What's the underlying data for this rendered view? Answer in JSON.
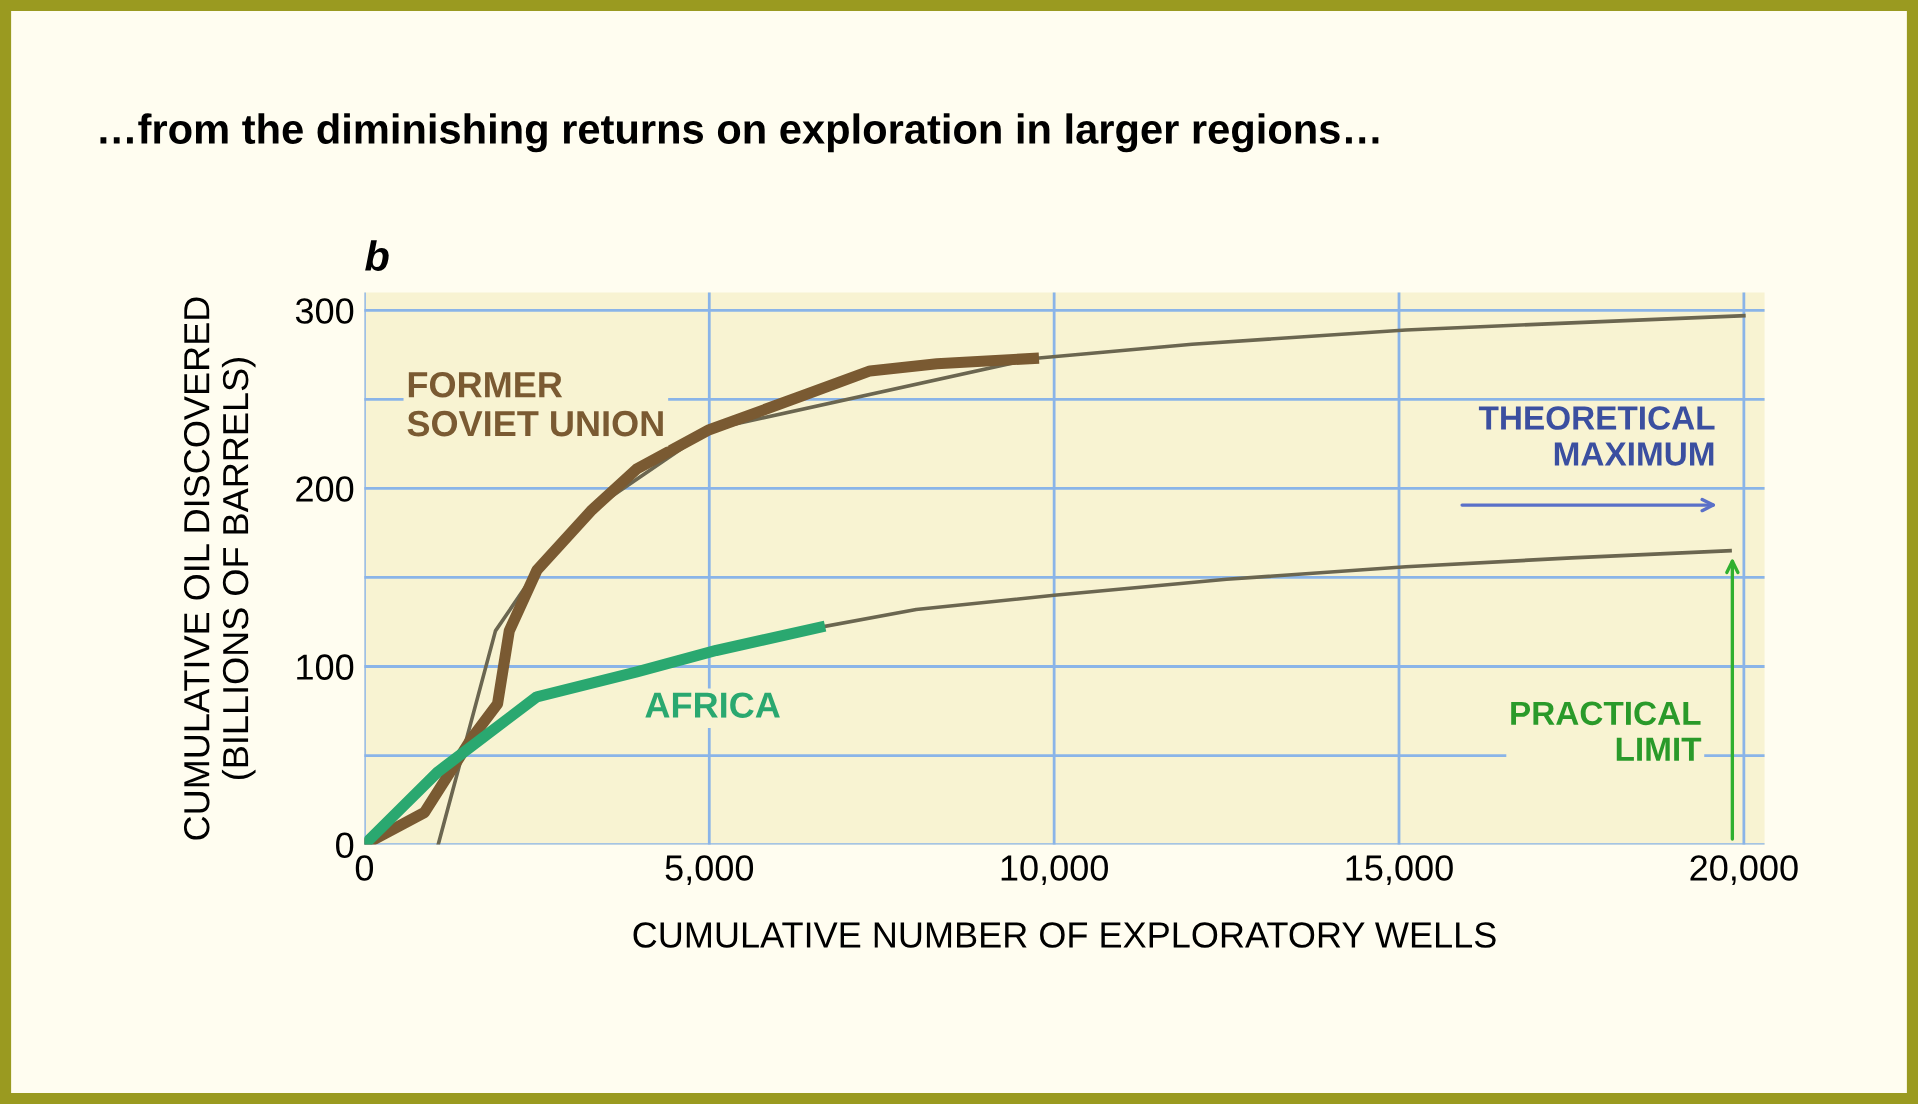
{
  "chart_data": {
    "type": "line",
    "title": "…from the diminishing returns on exploration in larger regions…",
    "xlabel": "CUMULATIVE NUMBER OF EXPLORATORY WELLS",
    "ylabel": "CUMULATIVE OIL DISCOVERED\n(BILLIONS OF BARRELS)",
    "xlim": [
      0,
      20300
    ],
    "ylim": [
      0,
      310
    ],
    "xticks": [
      {
        "value": 0,
        "label": "0"
      },
      {
        "value": 5000,
        "label": "5,000"
      },
      {
        "value": 10000,
        "label": "10,000"
      },
      {
        "value": 15000,
        "label": "15,000"
      },
      {
        "value": 20000,
        "label": "20,000"
      }
    ],
    "yticks": [
      0,
      {
        "value": 50,
        "label": null
      },
      100,
      {
        "value": 150,
        "label": null
      },
      200,
      {
        "value": 250,
        "label": null
      },
      300
    ],
    "grid": true,
    "legend": false,
    "series": [
      {
        "name": "FORMER SOVIET UNION",
        "color": "#7a5a32",
        "x": [
          0,
          870,
          1560,
          1930,
          2100,
          2500,
          3300,
          3950,
          5000,
          6350,
          7330,
          8300,
          9700
        ],
        "values": [
          0,
          18,
          60,
          79,
          120,
          154,
          188,
          211,
          233,
          252,
          266,
          270,
          273
        ]
      },
      {
        "color": "#6b6650",
        "x": [
          1070,
          1900,
          2500,
          3300,
          5000,
          9700,
          12000,
          15100,
          17500,
          20000
        ],
        "values": [
          0,
          120,
          154,
          188,
          233,
          273,
          281,
          289,
          293,
          297
        ]
      },
      {
        "name": "AFRICA",
        "color": "#2aa870",
        "x": [
          0,
          1070,
          2500,
          3950,
          5100,
          6600
        ],
        "values": [
          0,
          41,
          83,
          97,
          109,
          122
        ]
      },
      {
        "color": "#6b6650",
        "x": [
          6600,
          8000,
          10000,
          12500,
          15100,
          17500,
          19800
        ],
        "values": [
          122,
          132,
          140,
          149,
          156,
          161,
          165
        ]
      }
    ],
    "annotations": [
      "b",
      "THEORETICAL\nMAXIMUM",
      "PRACTICAL\nLIMIT"
    ]
  }
}
